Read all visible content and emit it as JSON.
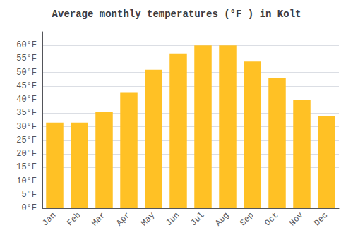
{
  "chart_data": {
    "type": "bar",
    "title": "Average monthly temperatures (°F ) in Kolt",
    "categories": [
      "Jan",
      "Feb",
      "Mar",
      "Apr",
      "May",
      "Jun",
      "Jul",
      "Aug",
      "Sep",
      "Oct",
      "Nov",
      "Dec"
    ],
    "values": [
      31.5,
      31.5,
      35.5,
      42.5,
      51.0,
      57.0,
      60.0,
      60.0,
      54.0,
      48.0,
      40.0,
      34.0
    ],
    "color": "#FFC125",
    "ylim": [
      0,
      65
    ],
    "yticks": [
      {
        "value": 0,
        "label": "0°F"
      },
      {
        "value": 5,
        "label": "5°F"
      },
      {
        "value": 10,
        "label": "10°F"
      },
      {
        "value": 15,
        "label": "15°F"
      },
      {
        "value": 20,
        "label": "20°F"
      },
      {
        "value": 25,
        "label": "25°F"
      },
      {
        "value": 30,
        "label": "30°F"
      },
      {
        "value": 35,
        "label": "35°F"
      },
      {
        "value": 40,
        "label": "40°F"
      },
      {
        "value": 45,
        "label": "45°F"
      },
      {
        "value": 50,
        "label": "50°F"
      },
      {
        "value": 55,
        "label": "55°F"
      },
      {
        "value": 60,
        "label": "60°F"
      }
    ],
    "grid": true
  }
}
